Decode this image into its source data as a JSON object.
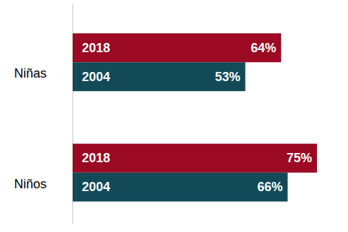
{
  "chart_data": {
    "type": "bar",
    "orientation": "horizontal",
    "categories": [
      "Niñas",
      "Niños"
    ],
    "series": [
      {
        "name": "2018",
        "color": "#9b0a22",
        "values": [
          64,
          75
        ],
        "value_labels": [
          "64%",
          "75%"
        ]
      },
      {
        "name": "2004",
        "color": "#124a58",
        "values": [
          53,
          66
        ],
        "value_labels": [
          "53%",
          "66%"
        ]
      }
    ],
    "xlim": [
      0,
      75
    ],
    "data_labels": true,
    "grid": false,
    "tick_labels": false
  }
}
